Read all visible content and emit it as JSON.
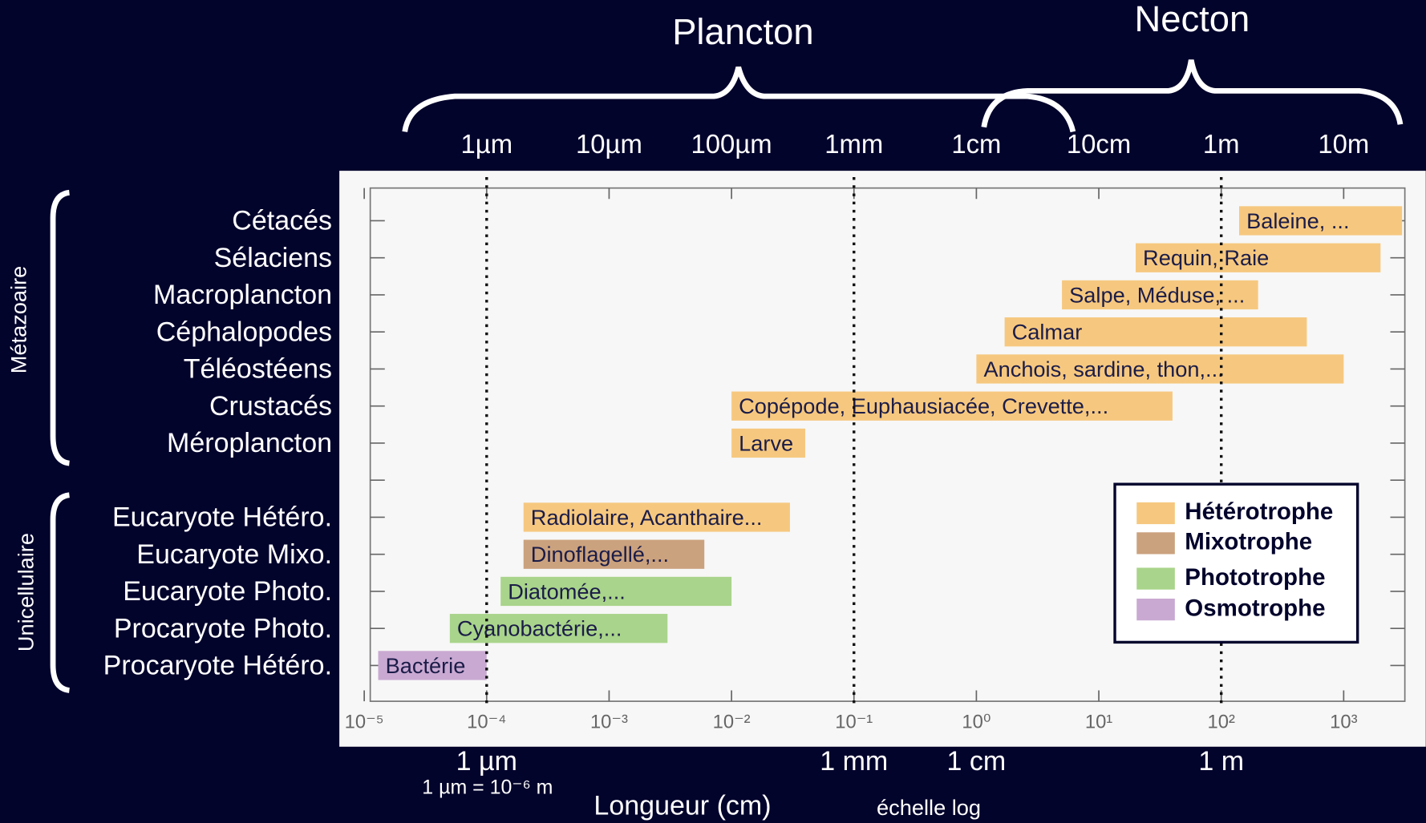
{
  "chart_data": {
    "type": "range-bar",
    "top_labels": [
      "Plancton",
      "Necton"
    ],
    "row_groups": [
      "Métazoaire",
      "Unicellulaire"
    ],
    "categories": [
      "Cétacés",
      "Sélaciens",
      "Macroplancton",
      "Céphalopodes",
      "Téléostéens",
      "Crustacés",
      "Méroplancton",
      null,
      "Eucaryote Hétéro.",
      "Eucaryote Mixo.",
      "Eucaryote Photo.",
      "Procaryote Photo.",
      "Procaryote Hétéro."
    ],
    "series": [
      {
        "name": "Hétérotrophe",
        "color": "#f6c87f",
        "values": [
          [
            140,
            3000
          ],
          [
            20,
            2000
          ],
          [
            5,
            200
          ],
          [
            1.7,
            500
          ],
          [
            1,
            1000
          ],
          [
            0.01,
            40
          ],
          [
            0.01,
            0.04
          ],
          null,
          [
            0.0002,
            0.03
          ],
          null,
          null,
          null,
          null
        ],
        "value_labels": [
          "Baleine, ...",
          "Requin, Raie",
          "Salpe, Méduse, ...",
          "Calmar",
          "Anchois, sardine, thon,...",
          "Copépode, Euphausiacée, Crevette,...",
          "Larve",
          null,
          "Radiolaire, Acanthaire...",
          null,
          null,
          null,
          null
        ]
      },
      {
        "name": "Mixotrophe",
        "color": "#cba27e",
        "values": [
          null,
          null,
          null,
          null,
          null,
          null,
          null,
          null,
          null,
          [
            0.0002,
            0.006
          ],
          null,
          null,
          null
        ],
        "value_labels": [
          null,
          null,
          null,
          null,
          null,
          null,
          null,
          null,
          null,
          "Dinoflagellé,...",
          null,
          null,
          null
        ]
      },
      {
        "name": "Phototrophe",
        "color": "#a9d48b",
        "values": [
          null,
          null,
          null,
          null,
          null,
          null,
          null,
          null,
          null,
          null,
          [
            0.00013,
            0.01
          ],
          [
            5e-05,
            0.003
          ],
          null
        ],
        "value_labels": [
          null,
          null,
          null,
          null,
          null,
          null,
          null,
          null,
          null,
          null,
          "Diatomée,...",
          "Cyanobactérie,...",
          null
        ]
      },
      {
        "name": "Osmotrophe",
        "color": "#c9a9d2",
        "values": [
          null,
          null,
          null,
          null,
          null,
          null,
          null,
          null,
          null,
          null,
          null,
          null,
          [
            1.3e-05,
            0.0001
          ]
        ],
        "value_labels": [
          null,
          null,
          null,
          null,
          null,
          null,
          null,
          null,
          null,
          null,
          null,
          null,
          "Bactérie"
        ]
      }
    ],
    "xscale": "log",
    "xlim": [
      1.12e-05,
      3160
    ],
    "xticks": [
      {
        "value": 1e-05,
        "label": "10⁻⁵"
      },
      {
        "value": 0.0001,
        "label": "10⁻⁴"
      },
      {
        "value": 0.001,
        "label": "10⁻³"
      },
      {
        "value": 0.01,
        "label": "10⁻²"
      },
      {
        "value": 0.1,
        "label": "10⁻¹"
      },
      {
        "value": 1,
        "label": "10⁰"
      },
      {
        "value": 10,
        "label": "10¹"
      },
      {
        "value": 100,
        "label": "10²"
      },
      {
        "value": 1000,
        "label": "10³"
      }
    ],
    "x2ticks": [
      {
        "value": 0.0001,
        "label": "1µm"
      },
      {
        "value": 0.001,
        "label": "10µm"
      },
      {
        "value": 0.01,
        "label": "100µm"
      },
      {
        "value": 0.1,
        "label": "1mm"
      },
      {
        "value": 1,
        "label": "1cm"
      },
      {
        "value": 10,
        "label": "10cm"
      },
      {
        "value": 100,
        "label": "1m"
      },
      {
        "value": 1000,
        "label": "10m"
      }
    ],
    "bottom_labels": [
      {
        "value": 0.0001,
        "label": "1 µm"
      },
      {
        "value": 0.1,
        "label": "1 mm"
      },
      {
        "value": 1,
        "label": "1 cm"
      },
      {
        "value": 100,
        "label": "1 m"
      }
    ],
    "reference_lines": [
      0.0001,
      0.1,
      100
    ],
    "note": "1 µm = 10⁻⁶ m",
    "xlabel": "Longueur (cm)",
    "xlabel_note": "échelle log",
    "legend": "lower right"
  }
}
